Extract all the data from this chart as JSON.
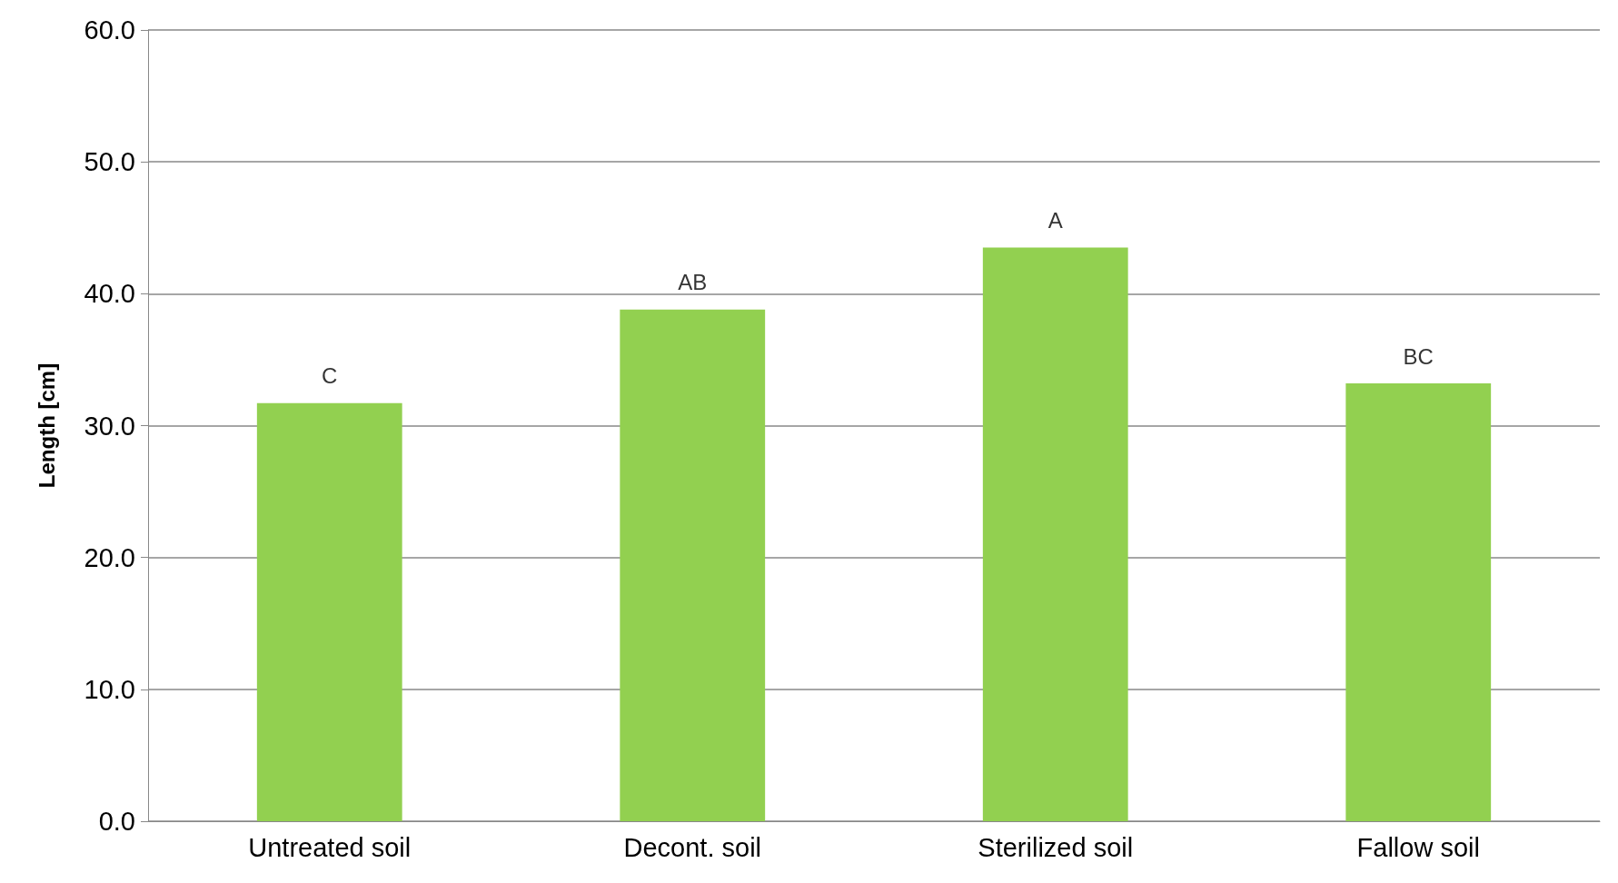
{
  "chart_data": {
    "type": "bar",
    "ylabel": "Length [cm]",
    "categories": [
      "Untreated soil",
      "Decont. soil",
      "Sterilized soil",
      "Fallow soil"
    ],
    "values": [
      31.7,
      38.8,
      43.5,
      33.2
    ],
    "color": "#92d050",
    "ylim": [
      0,
      60
    ],
    "yticks": [
      {
        "value": 0,
        "label": "0.0"
      },
      {
        "value": 10,
        "label": "10.0"
      },
      {
        "value": 20,
        "label": "20.0"
      },
      {
        "value": 30,
        "label": "30.0"
      },
      {
        "value": 40,
        "label": "40.0"
      },
      {
        "value": 50,
        "label": "50.0"
      },
      {
        "value": 60,
        "label": "60.0"
      }
    ],
    "grid": "y",
    "annotations": [
      {
        "text": "C",
        "x": "Untreated soil",
        "y": 31.7
      },
      {
        "text": "AB",
        "x": "Decont. soil",
        "y": 38.8
      },
      {
        "text": "A",
        "x": "Sterilized soil",
        "y": 43.5
      },
      {
        "text": "BC",
        "x": "Fallow soil",
        "y": 33.2
      }
    ]
  }
}
